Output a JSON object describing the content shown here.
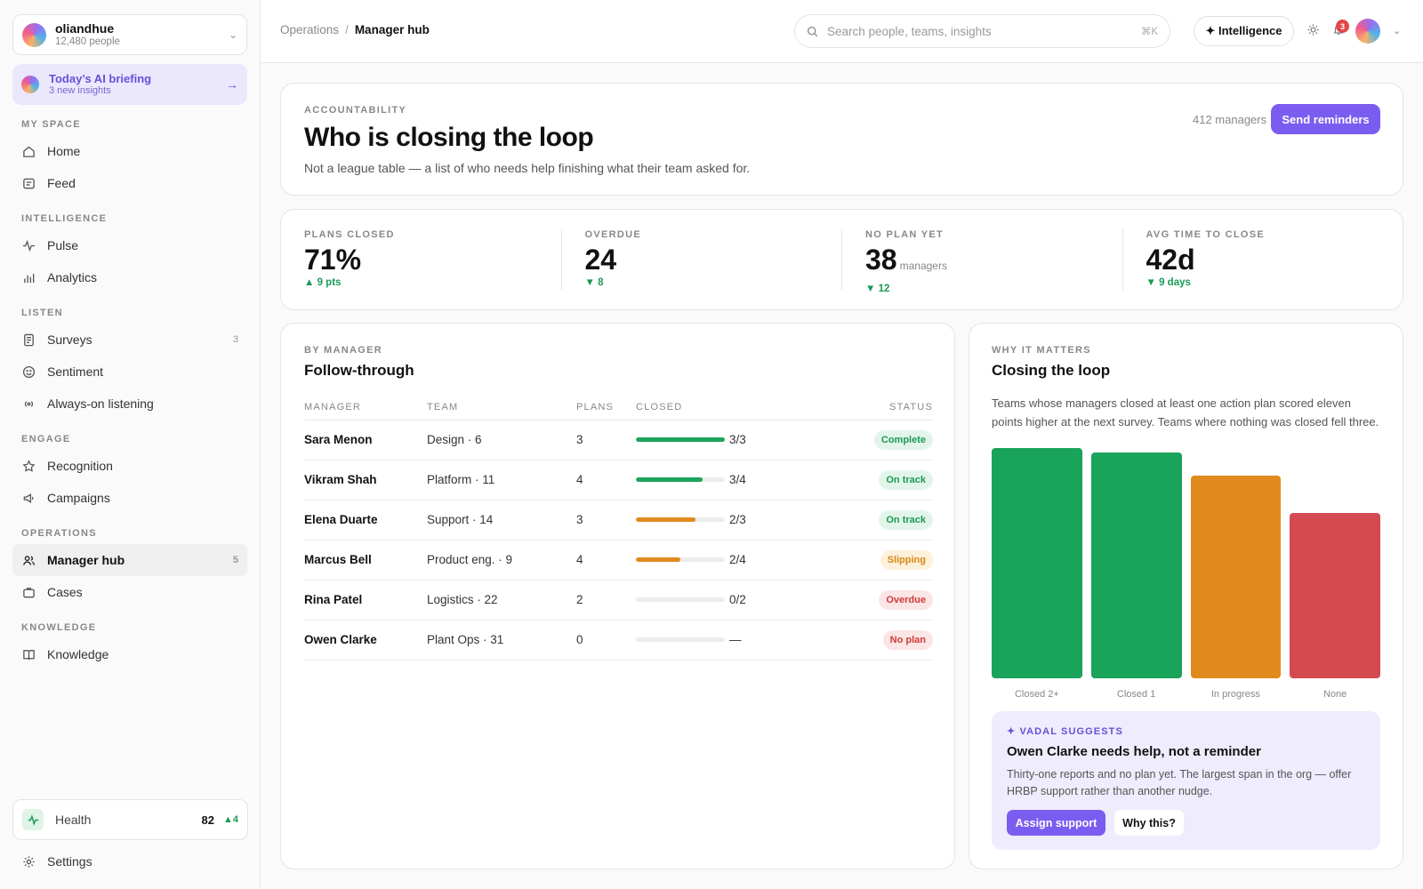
{
  "sidebar": {
    "org": {
      "name": "oliandhue",
      "people": "12,480 people"
    },
    "briefing": {
      "title": "Today’s AI briefing",
      "subtitle": "3 new insights"
    },
    "sections": {
      "my_space": "MY SPACE",
      "intelligence": "INTELLIGENCE",
      "listen": "LISTEN",
      "engage": "ENGAGE",
      "operations": "OPERATIONS",
      "knowledge": "KNOWLEDGE"
    },
    "items": {
      "home": {
        "label": "Home",
        "icon": "home-icon"
      },
      "feed": {
        "label": "Feed",
        "icon": "feed-icon"
      },
      "pulse": {
        "label": "Pulse",
        "icon": "pulse-icon"
      },
      "analytics": {
        "label": "Analytics",
        "icon": "analytics-icon"
      },
      "surveys": {
        "label": "Surveys",
        "icon": "survey-icon",
        "count": "3"
      },
      "sentiment": {
        "label": "Sentiment",
        "icon": "smile-icon"
      },
      "listening": {
        "label": "Always-on listening",
        "icon": "broadcast-icon"
      },
      "recognition": {
        "label": "Recognition",
        "icon": "star-icon"
      },
      "campaigns": {
        "label": "Campaigns",
        "icon": "megaphone-icon"
      },
      "manager_hub": {
        "label": "Manager hub",
        "icon": "users-icon",
        "count": "5"
      },
      "cases": {
        "label": "Cases",
        "icon": "briefcase-icon"
      },
      "knowledge": {
        "label": "Knowledge",
        "icon": "book-icon"
      }
    },
    "health": {
      "label": "Health",
      "value": "82",
      "delta": "▲4"
    },
    "settings": {
      "label": "Settings"
    }
  },
  "topbar": {
    "breadcrumb": {
      "parent": "Operations",
      "separator": "/",
      "current": "Manager hub"
    },
    "search": {
      "placeholder": "Search people, teams, insights",
      "shortcut": "⌘K"
    },
    "intelligence_label": "✦ Intelligence",
    "notifications_count": "3"
  },
  "hero": {
    "eyebrow": "ACCOUNTABILITY",
    "title": "Who is closing the loop",
    "subtitle": "Not a league table — a list of who needs help finishing what their team asked for.",
    "managers": "412 managers",
    "send_label": "Send reminders"
  },
  "stats": [
    {
      "label": "PLANS CLOSED",
      "value": "71%",
      "unit": "",
      "delta": "▲ 9 pts"
    },
    {
      "label": "OVERDUE",
      "value": "24",
      "unit": "",
      "delta": "▼ 8"
    },
    {
      "label": "NO PLAN YET",
      "value": "38",
      "unit": "managers",
      "delta": "▼ 12"
    },
    {
      "label": "AVG TIME TO CLOSE",
      "value": "42d",
      "unit": "",
      "delta": "▼ 9 days"
    }
  ],
  "follow": {
    "eyebrow": "BY MANAGER",
    "title": "Follow-through",
    "columns": {
      "manager": "MANAGER",
      "team": "TEAM",
      "plans": "PLANS",
      "closed": "CLOSED",
      "status": "STATUS"
    },
    "rows": [
      {
        "manager": "Sara Menon",
        "team": "Design · 6",
        "plans": "3",
        "closed": "3/3",
        "progress": 1.0,
        "bar_color": "#1aa35a",
        "status": "Complete",
        "status_fg": "#1a9a55",
        "status_bg": "#e3f5ea"
      },
      {
        "manager": "Vikram Shah",
        "team": "Platform · 11",
        "plans": "4",
        "closed": "3/4",
        "progress": 0.75,
        "bar_color": "#1aa35a",
        "status": "On track",
        "status_fg": "#1a9a55",
        "status_bg": "#e3f5ea"
      },
      {
        "manager": "Elena Duarte",
        "team": "Support · 14",
        "plans": "3",
        "closed": "2/3",
        "progress": 0.667,
        "bar_color": "#e08a1e",
        "status": "On track",
        "status_fg": "#1a9a55",
        "status_bg": "#e3f5ea"
      },
      {
        "manager": "Marcus Bell",
        "team": "Product eng. · 9",
        "plans": "4",
        "closed": "2/4",
        "progress": 0.5,
        "bar_color": "#e08a1e",
        "status": "Slipping",
        "status_fg": "#d68910",
        "status_bg": "#fdf1dc"
      },
      {
        "manager": "Rina Patel",
        "team": "Logistics · 22",
        "plans": "2",
        "closed": "0/2",
        "progress": 0,
        "bar_color": "#e08a1e",
        "status": "Overdue",
        "status_fg": "#d03a3a",
        "status_bg": "#fbe5e5"
      },
      {
        "manager": "Owen Clarke",
        "team": "Plant Ops · 31",
        "plans": "0",
        "closed": "—",
        "progress": 0,
        "bar_color": "#e08a1e",
        "status": "No plan",
        "status_fg": "#d03a3a",
        "status_bg": "#fbe5e5"
      }
    ]
  },
  "why": {
    "eyebrow": "WHY IT MATTERS",
    "title": "Closing the loop",
    "body": "Teams whose managers closed at least one action plan scored eleven points higher at the next survey. Teams where nothing was closed fell three."
  },
  "chart_data": {
    "type": "bar",
    "categories": [
      "Closed 2+",
      "Closed 1",
      "In progress",
      "None"
    ],
    "values": [
      100,
      98,
      88,
      72
    ],
    "colors": [
      "#1aa35a",
      "#1aa35a",
      "#e08a1e",
      "#d44a50"
    ],
    "title": "",
    "xlabel": "",
    "ylabel": "",
    "ylim": [
      0,
      100
    ],
    "grid": false
  },
  "suggest": {
    "eyebrow": "✦ VADAL SUGGESTS",
    "title": "Owen Clarke needs help, not a reminder",
    "body": "Thirty-one reports and no plan yet. The largest span in the org — offer HRBP support rather than another nudge.",
    "assign_label": "Assign support",
    "why_label": "Why this?"
  }
}
